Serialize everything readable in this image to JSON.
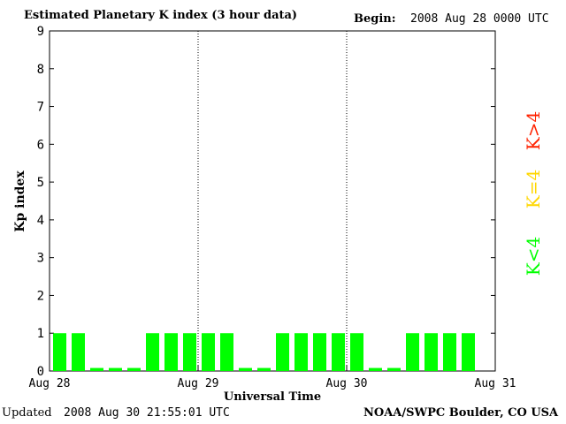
{
  "header": {
    "title": "Estimated Planetary K index (3 hour data)",
    "begin_label": "Begin:",
    "begin_value": "2008 Aug 28 0000 UTC"
  },
  "footer": {
    "updated_label": "Updated",
    "updated_value": "2008 Aug 30 21:55:01 UTC",
    "source": "NOAA/SWPC Boulder, CO USA"
  },
  "colors": {
    "k_below_4": "#00ff00",
    "k_equal_4": "#ffd700",
    "k_above_4": "#ff2200"
  },
  "chart_data": {
    "type": "bar",
    "title": "Estimated Planetary K index (3 hour data)",
    "xlabel": "Universal Time",
    "ylabel": "Kp index",
    "ylim": [
      0,
      9
    ],
    "yticks": [
      0,
      1,
      2,
      3,
      4,
      5,
      6,
      7,
      8,
      9
    ],
    "day_labels": [
      "Aug 28",
      "Aug 29",
      "Aug 30",
      "Aug 31"
    ],
    "interval_hours": 3,
    "values": [
      1,
      1,
      0,
      0,
      0,
      1,
      1,
      1,
      1,
      1,
      0,
      0,
      1,
      1,
      1,
      1,
      1,
      0,
      0,
      1,
      1,
      1,
      1
    ],
    "legend": [
      {
        "label": "K<4",
        "color": "#00ff00"
      },
      {
        "label": "K=4",
        "color": "#ffd700"
      },
      {
        "label": "K>4",
        "color": "#ff2200"
      }
    ],
    "grid": "dotted vertical lines at day boundaries"
  }
}
